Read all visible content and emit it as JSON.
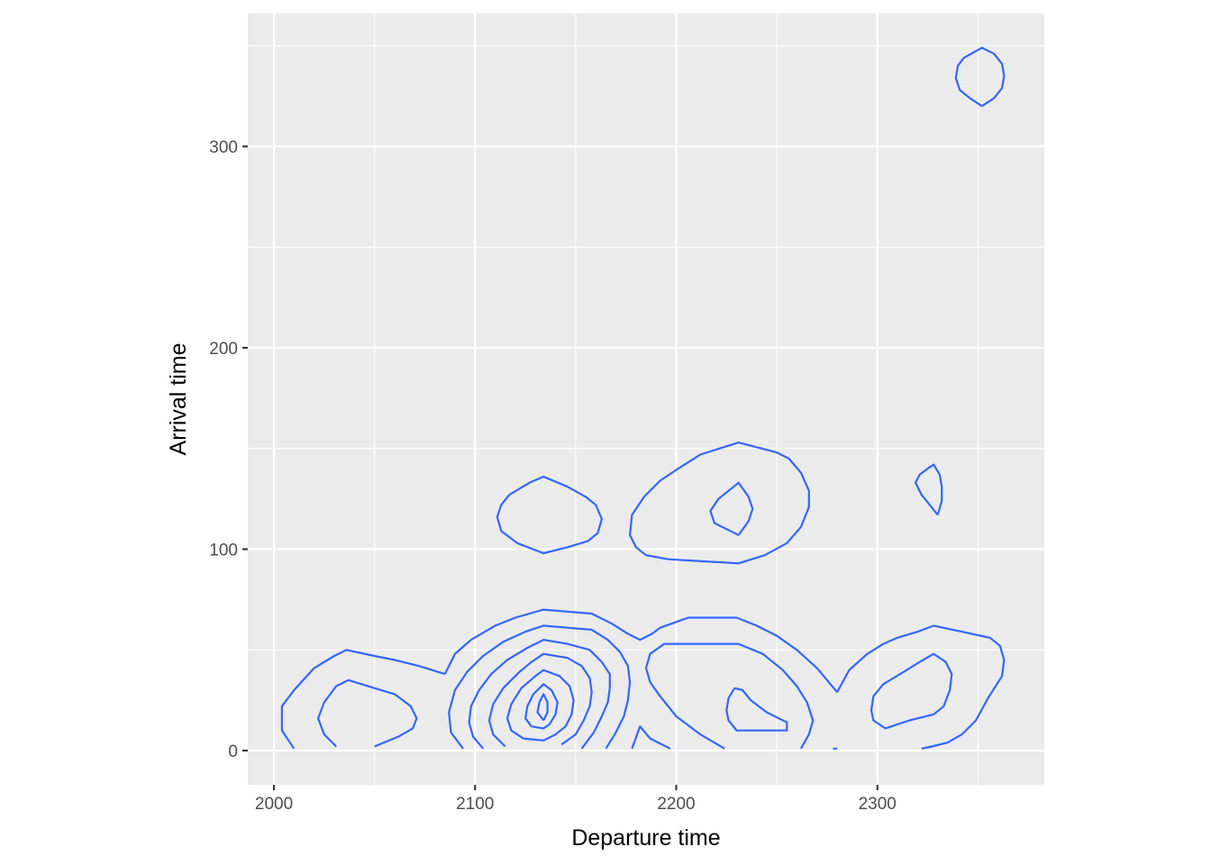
{
  "chart_data": {
    "type": "contour",
    "title": "",
    "xlabel": "Departure time",
    "ylabel": "Arrival time",
    "xlim": [
      1987,
      2383
    ],
    "ylim": [
      -17,
      366
    ],
    "x_ticks": [
      2000,
      2100,
      2200,
      2300
    ],
    "y_ticks": [
      0,
      100,
      200,
      300
    ],
    "x_tick_labels": [
      "2000",
      "2100",
      "2200",
      "2300"
    ],
    "y_tick_labels": [
      "0",
      "100",
      "200",
      "300"
    ],
    "x_minor": [
      2050,
      2150,
      2250,
      2350
    ],
    "y_minor": [
      50,
      150,
      250,
      350
    ],
    "grid": true,
    "line_color": "#3366ff",
    "contours": [
      {
        "level": 1,
        "points": [
          [
            2010,
            1
          ],
          [
            2004,
            10
          ],
          [
            2004,
            22
          ],
          [
            2010,
            30
          ],
          [
            2020,
            41
          ],
          [
            2030,
            47
          ],
          [
            2036,
            50
          ],
          [
            2050,
            47
          ],
          [
            2060,
            45
          ],
          [
            2072,
            42
          ],
          [
            2085,
            38
          ]
        ]
      },
      {
        "level": 1,
        "points": [
          [
            2031,
            2
          ],
          [
            2025,
            8
          ],
          [
            2022,
            16
          ],
          [
            2025,
            24
          ],
          [
            2031,
            32
          ],
          [
            2037,
            35
          ],
          [
            2050,
            31
          ],
          [
            2060,
            28
          ],
          [
            2068,
            22
          ],
          [
            2071,
            16
          ],
          [
            2069,
            11
          ],
          [
            2062,
            7
          ],
          [
            2050,
            2
          ]
        ]
      },
      {
        "level": 1,
        "points": [
          [
            2085,
            38
          ],
          [
            2090,
            48
          ],
          [
            2098,
            55
          ],
          [
            2110,
            62
          ],
          [
            2120,
            66
          ],
          [
            2134,
            70
          ],
          [
            2146,
            69
          ],
          [
            2158,
            68
          ],
          [
            2168,
            63
          ],
          [
            2176,
            58
          ],
          [
            2182,
            55
          ],
          [
            2188,
            58
          ],
          [
            2192,
            61
          ],
          [
            2206,
            66
          ],
          [
            2230,
            66
          ],
          [
            2240,
            62
          ],
          [
            2250,
            57
          ],
          [
            2260,
            50
          ],
          [
            2270,
            41
          ],
          [
            2280,
            29
          ]
        ]
      },
      {
        "level": 2,
        "points": [
          [
            2094,
            1
          ],
          [
            2088,
            9
          ],
          [
            2087,
            19
          ],
          [
            2090,
            30
          ],
          [
            2096,
            39
          ],
          [
            2104,
            47
          ],
          [
            2114,
            54
          ],
          [
            2125,
            59
          ],
          [
            2134,
            62
          ],
          [
            2146,
            61
          ],
          [
            2158,
            60
          ],
          [
            2166,
            55
          ],
          [
            2172,
            49
          ],
          [
            2176,
            42
          ],
          [
            2177,
            34
          ],
          [
            2176,
            25
          ],
          [
            2174,
            17
          ],
          [
            2170,
            9
          ],
          [
            2165,
            1
          ]
        ]
      },
      {
        "level": 3,
        "points": [
          [
            2104,
            1
          ],
          [
            2099,
            7
          ],
          [
            2097,
            14
          ],
          [
            2098,
            22
          ],
          [
            2102,
            30
          ],
          [
            2108,
            38
          ],
          [
            2116,
            45
          ],
          [
            2126,
            51
          ],
          [
            2134,
            55
          ],
          [
            2146,
            53
          ],
          [
            2157,
            50
          ],
          [
            2163,
            44
          ],
          [
            2167,
            38
          ],
          [
            2167,
            31
          ],
          [
            2166,
            24
          ],
          [
            2163,
            17
          ],
          [
            2159,
            9
          ],
          [
            2153,
            1
          ]
        ]
      },
      {
        "level": 4,
        "points": [
          [
            2115,
            2
          ],
          [
            2109,
            8
          ],
          [
            2107,
            15
          ],
          [
            2109,
            23
          ],
          [
            2114,
            31
          ],
          [
            2122,
            39
          ],
          [
            2128,
            44
          ],
          [
            2134,
            48
          ],
          [
            2146,
            46
          ],
          [
            2153,
            42
          ],
          [
            2157,
            36
          ],
          [
            2158,
            29
          ],
          [
            2157,
            22
          ],
          [
            2154,
            15
          ],
          [
            2150,
            8
          ],
          [
            2143,
            3
          ]
        ]
      },
      {
        "level": 5,
        "points": [
          [
            2124,
            6
          ],
          [
            2118,
            10
          ],
          [
            2116,
            16
          ],
          [
            2118,
            23
          ],
          [
            2123,
            31
          ],
          [
            2130,
            37
          ],
          [
            2134,
            40
          ],
          [
            2142,
            37
          ],
          [
            2147,
            32
          ],
          [
            2149,
            25
          ],
          [
            2148,
            18
          ],
          [
            2145,
            12
          ],
          [
            2140,
            8
          ],
          [
            2134,
            5
          ],
          [
            2124,
            6
          ]
        ]
      },
      {
        "level": 6,
        "points": [
          [
            2128,
            12
          ],
          [
            2125,
            16
          ],
          [
            2126,
            22
          ],
          [
            2129,
            28
          ],
          [
            2134,
            33
          ],
          [
            2138,
            30
          ],
          [
            2141,
            24
          ],
          [
            2140,
            18
          ],
          [
            2137,
            13
          ],
          [
            2134,
            11
          ],
          [
            2128,
            12
          ]
        ]
      },
      {
        "level": 7,
        "points": [
          [
            2134,
            15
          ],
          [
            2131,
            19
          ],
          [
            2132,
            24
          ],
          [
            2134,
            28
          ],
          [
            2136,
            24
          ],
          [
            2136,
            19
          ],
          [
            2134,
            15
          ]
        ]
      },
      {
        "level": 1,
        "points": [
          [
            2178,
            1
          ],
          [
            2182,
            12
          ],
          [
            2187,
            6
          ],
          [
            2197,
            1
          ]
        ]
      },
      {
        "level": 1,
        "points": [
          [
            2224,
            1
          ],
          [
            2212,
            8
          ],
          [
            2200,
            17
          ],
          [
            2192,
            27
          ],
          [
            2187,
            34
          ],
          [
            2185,
            41
          ],
          [
            2187,
            48
          ],
          [
            2194,
            53
          ],
          [
            2231,
            53
          ],
          [
            2243,
            48
          ],
          [
            2253,
            40
          ],
          [
            2260,
            32
          ],
          [
            2265,
            24
          ],
          [
            2268,
            15
          ],
          [
            2266,
            8
          ],
          [
            2262,
            1
          ]
        ]
      },
      {
        "level": 2,
        "points": [
          [
            2229,
            31
          ],
          [
            2226,
            26
          ],
          [
            2225,
            20
          ],
          [
            2226,
            15
          ],
          [
            2230,
            10
          ],
          [
            2255,
            10
          ],
          [
            2255,
            14
          ],
          [
            2245,
            19
          ],
          [
            2237,
            25
          ],
          [
            2233,
            30
          ],
          [
            2229,
            31
          ]
        ]
      },
      {
        "level": 1,
        "points": [
          [
            2278,
            1
          ],
          [
            2280,
            1
          ]
        ]
      },
      {
        "level": 1,
        "points": [
          [
            2280,
            29
          ],
          [
            2286,
            40
          ],
          [
            2295,
            48
          ],
          [
            2303,
            53
          ],
          [
            2310,
            56
          ],
          [
            2320,
            59
          ],
          [
            2328,
            62
          ],
          [
            2342,
            59
          ],
          [
            2356,
            56
          ],
          [
            2361,
            52
          ],
          [
            2363,
            45
          ],
          [
            2362,
            37
          ],
          [
            2355,
            26
          ],
          [
            2349,
            15
          ],
          [
            2342,
            8
          ],
          [
            2335,
            4
          ],
          [
            2327,
            2
          ],
          [
            2322,
            1
          ]
        ]
      },
      {
        "level": 2,
        "points": [
          [
            2304,
            11
          ],
          [
            2298,
            15
          ],
          [
            2297,
            20
          ],
          [
            2298,
            27
          ],
          [
            2303,
            33
          ],
          [
            2313,
            39
          ],
          [
            2321,
            44
          ],
          [
            2328,
            48
          ],
          [
            2334,
            44
          ],
          [
            2337,
            38
          ],
          [
            2336,
            30
          ],
          [
            2333,
            22
          ],
          [
            2328,
            18
          ],
          [
            2316,
            15
          ],
          [
            2304,
            11
          ]
        ]
      },
      {
        "level": 1,
        "points": [
          [
            2117,
            127
          ],
          [
            2127,
            133
          ],
          [
            2134,
            136
          ],
          [
            2146,
            131
          ],
          [
            2155,
            126
          ],
          [
            2160,
            122
          ],
          [
            2163,
            115
          ],
          [
            2161,
            108
          ],
          [
            2156,
            104
          ],
          [
            2146,
            101
          ],
          [
            2134,
            98
          ],
          [
            2121,
            103
          ],
          [
            2113,
            109
          ],
          [
            2111,
            116
          ],
          [
            2113,
            122
          ],
          [
            2117,
            127
          ]
        ]
      },
      {
        "level": 1,
        "points": [
          [
            2201,
            140
          ],
          [
            2192,
            134
          ],
          [
            2184,
            126
          ],
          [
            2178,
            117
          ],
          [
            2177,
            107
          ],
          [
            2180,
            101
          ],
          [
            2185,
            97
          ],
          [
            2196,
            95
          ],
          [
            2231,
            93
          ],
          [
            2244,
            97
          ],
          [
            2255,
            103
          ],
          [
            2262,
            111
          ],
          [
            2266,
            121
          ],
          [
            2266,
            129
          ],
          [
            2262,
            138
          ],
          [
            2256,
            145
          ],
          [
            2250,
            148
          ],
          [
            2231,
            153
          ],
          [
            2212,
            147
          ],
          [
            2201,
            140
          ]
        ]
      },
      {
        "level": 2,
        "points": [
          [
            2231,
            107
          ],
          [
            2225,
            110
          ],
          [
            2219,
            113
          ],
          [
            2217,
            119
          ],
          [
            2221,
            125
          ],
          [
            2231,
            133
          ],
          [
            2236,
            126
          ],
          [
            2238,
            120
          ],
          [
            2236,
            114
          ],
          [
            2231,
            107
          ]
        ]
      },
      {
        "level": 1,
        "points": [
          [
            2330,
            117
          ],
          [
            2326,
            122
          ],
          [
            2322,
            127
          ],
          [
            2319,
            133
          ],
          [
            2321,
            137
          ],
          [
            2325,
            140
          ],
          [
            2328,
            142
          ],
          [
            2331,
            137
          ],
          [
            2332,
            131
          ],
          [
            2332,
            124
          ],
          [
            2330,
            117
          ]
        ]
      },
      {
        "level": 1,
        "points": [
          [
            2352,
            320
          ],
          [
            2346,
            324
          ],
          [
            2341,
            328
          ],
          [
            2339,
            334
          ],
          [
            2340,
            340
          ],
          [
            2343,
            344
          ],
          [
            2352,
            349
          ],
          [
            2358,
            346
          ],
          [
            2362,
            341
          ],
          [
            2363,
            335
          ],
          [
            2362,
            329
          ],
          [
            2358,
            324
          ],
          [
            2352,
            320
          ]
        ]
      }
    ]
  }
}
